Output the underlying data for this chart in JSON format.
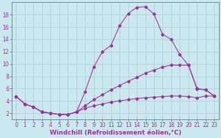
{
  "xlabel": "Windchill (Refroidissement éolien,°C)",
  "bg_color": "#cce8ef",
  "line_color": "#993399",
  "grid_color": "#b0ccd4",
  "xlim": [
    -0.5,
    23.5
  ],
  "ylim": [
    1,
    20
  ],
  "xticks": [
    0,
    1,
    2,
    3,
    4,
    5,
    6,
    7,
    8,
    9,
    10,
    11,
    12,
    13,
    14,
    15,
    16,
    17,
    18,
    19,
    20,
    21,
    22,
    23
  ],
  "yticks": [
    2,
    4,
    6,
    8,
    10,
    12,
    14,
    16,
    18
  ],
  "line1_x": [
    0,
    1,
    2,
    3,
    4,
    5,
    6,
    7,
    8,
    9,
    10,
    11,
    12,
    13,
    14,
    15,
    16,
    17,
    18,
    19,
    20,
    21,
    22,
    23
  ],
  "line1_y": [
    4.7,
    3.5,
    3.0,
    2.2,
    2.0,
    1.8,
    1.8,
    2.2,
    5.5,
    9.5,
    12.0,
    13.0,
    16.2,
    18.2,
    19.2,
    19.3,
    18.1,
    14.8,
    14.0,
    11.5,
    9.8,
    5.9,
    5.8,
    4.8
  ],
  "line2_x": [
    0,
    1,
    2,
    3,
    4,
    5,
    6,
    7,
    8,
    9,
    10,
    11,
    12,
    13,
    14,
    15,
    16,
    17,
    18,
    19,
    20,
    21,
    22,
    23
  ],
  "line2_y": [
    4.7,
    3.5,
    3.0,
    2.2,
    2.0,
    1.8,
    1.8,
    2.2,
    3.2,
    4.2,
    5.0,
    5.8,
    6.5,
    7.2,
    7.8,
    8.5,
    9.0,
    9.5,
    9.8,
    9.8,
    9.8,
    6.0,
    5.8,
    4.8
  ],
  "line3_x": [
    0,
    1,
    2,
    3,
    4,
    5,
    6,
    7,
    8,
    9,
    10,
    11,
    12,
    13,
    14,
    15,
    16,
    17,
    18,
    19,
    20,
    21,
    22,
    23
  ],
  "line3_y": [
    4.7,
    3.5,
    3.0,
    2.2,
    2.0,
    1.8,
    1.8,
    2.2,
    2.8,
    3.2,
    3.5,
    3.8,
    4.0,
    4.2,
    4.4,
    4.5,
    4.6,
    4.7,
    4.8,
    4.8,
    4.7,
    4.5,
    4.8,
    4.8
  ],
  "marker": "D",
  "markersize": 2.0,
  "linewidth": 0.8,
  "xlabel_fontsize": 6.5,
  "tick_fontsize": 5.5
}
